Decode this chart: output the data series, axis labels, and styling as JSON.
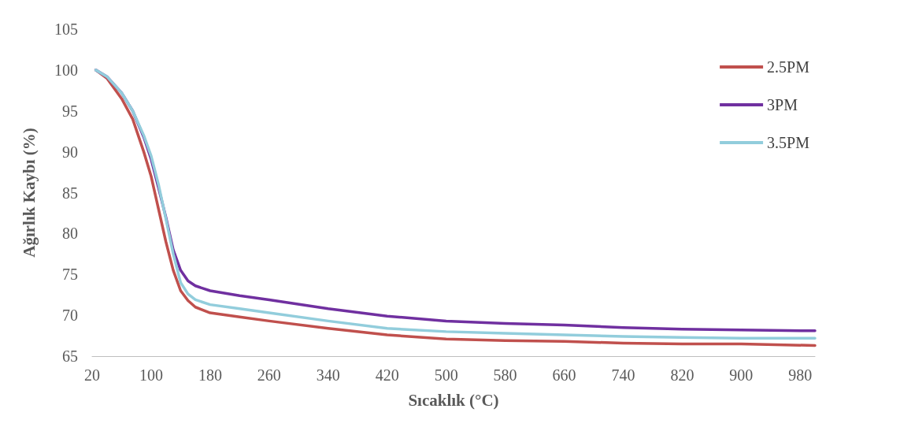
{
  "chart_data": {
    "type": "line",
    "xlabel": "Sıcaklık (°C)",
    "ylabel": "Ağırlık Kaybı (%)",
    "xlim": [
      20,
      1000
    ],
    "xticks": [
      20,
      100,
      180,
      260,
      340,
      420,
      500,
      580,
      660,
      740,
      820,
      900,
      980
    ],
    "ylim": [
      65,
      105
    ],
    "yticks": [
      65,
      70,
      75,
      80,
      85,
      90,
      95,
      100,
      105
    ],
    "grid": false,
    "legend": "top right",
    "marker": "none",
    "line_style": "solid",
    "x": [
      25,
      40,
      60,
      75,
      90,
      100,
      110,
      120,
      130,
      140,
      150,
      160,
      180,
      220,
      260,
      340,
      420,
      500,
      580,
      660,
      740,
      820,
      900,
      1000
    ],
    "series": [
      {
        "name": "2.5PM",
        "color": "#c0504d",
        "values": [
          100,
          99,
          96.5,
          94,
          90,
          87,
          83,
          79,
          75.5,
          73,
          71.8,
          71,
          70.3,
          69.8,
          69.3,
          68.4,
          67.6,
          67.1,
          66.9,
          66.8,
          66.6,
          66.5,
          66.5,
          66.3
        ]
      },
      {
        "name": "3PM",
        "color": "#7030a0",
        "values": [
          100,
          99.2,
          97.2,
          95,
          91.8,
          89.1,
          85.6,
          82,
          78,
          75.5,
          74.2,
          73.6,
          73,
          72.4,
          71.9,
          70.8,
          69.9,
          69.3,
          69,
          68.8,
          68.5,
          68.3,
          68.2,
          68.1
        ]
      },
      {
        "name": "3.5PM",
        "color": "#92cddc",
        "values": [
          100,
          99.2,
          97.2,
          95,
          92,
          89.5,
          86,
          81.8,
          77.5,
          74,
          72.6,
          71.9,
          71.3,
          70.8,
          70.3,
          69.3,
          68.4,
          68,
          67.8,
          67.6,
          67.4,
          67.3,
          67.2,
          67.2
        ]
      }
    ]
  }
}
